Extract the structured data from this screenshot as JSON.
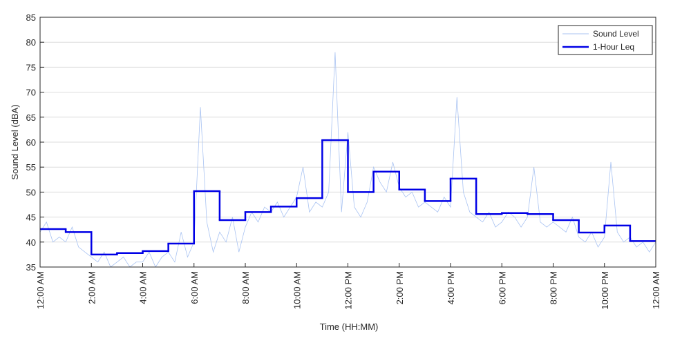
{
  "chart_data": {
    "type": "line",
    "xlabel": "Time (HH:MM)",
    "ylabel": "Sound Level (dBA)",
    "xlim": [
      0,
      24
    ],
    "xticks": [
      {
        "value": 0,
        "label": "12:00 AM"
      },
      {
        "value": 2,
        "label": "2:00 AM"
      },
      {
        "value": 4,
        "label": "4:00 AM"
      },
      {
        "value": 6,
        "label": "6:00 AM"
      },
      {
        "value": 8,
        "label": "8:00 AM"
      },
      {
        "value": 10,
        "label": "10:00 AM"
      },
      {
        "value": 12,
        "label": "12:00 PM"
      },
      {
        "value": 14,
        "label": "2:00 PM"
      },
      {
        "value": 16,
        "label": "4:00 PM"
      },
      {
        "value": 18,
        "label": "6:00 PM"
      },
      {
        "value": 20,
        "label": "8:00 PM"
      },
      {
        "value": 22,
        "label": "10:00 PM"
      },
      {
        "value": 24,
        "label": "12:00 AM"
      }
    ],
    "ylim": [
      35,
      85
    ],
    "yticks": [
      35,
      40,
      45,
      50,
      55,
      60,
      65,
      70,
      75,
      80,
      85
    ],
    "grid": true,
    "legend": "upper right",
    "series": [
      {
        "name": "Sound Level",
        "color": "#a9c3f2",
        "step": false,
        "x": [
          0,
          0.25,
          0.5,
          0.75,
          1,
          1.25,
          1.5,
          1.75,
          2,
          2.25,
          2.5,
          2.75,
          3,
          3.25,
          3.5,
          3.75,
          4,
          4.25,
          4.5,
          4.75,
          5,
          5.25,
          5.5,
          5.75,
          6,
          6.25,
          6.5,
          6.75,
          7,
          7.25,
          7.5,
          7.75,
          8,
          8.25,
          8.5,
          8.75,
          9,
          9.25,
          9.5,
          9.75,
          10,
          10.25,
          10.5,
          10.75,
          11,
          11.25,
          11.5,
          11.75,
          12,
          12.25,
          12.5,
          12.75,
          13,
          13.25,
          13.5,
          13.75,
          14,
          14.25,
          14.5,
          14.75,
          15,
          15.25,
          15.5,
          15.75,
          16,
          16.25,
          16.5,
          16.75,
          17,
          17.25,
          17.5,
          17.75,
          18,
          18.25,
          18.5,
          18.75,
          19,
          19.25,
          19.5,
          19.75,
          20,
          20.25,
          20.5,
          20.75,
          21,
          21.25,
          21.5,
          21.75,
          22,
          22.25,
          22.5,
          22.75,
          23,
          23.25,
          23.5,
          23.75,
          24
        ],
        "values": [
          42,
          44,
          40,
          41,
          40,
          43,
          39,
          38,
          37,
          36,
          38,
          35,
          36,
          37,
          35,
          36,
          36,
          38,
          35,
          37,
          38,
          36,
          42,
          37,
          40,
          67,
          44,
          38,
          42,
          40,
          45,
          38,
          43,
          46,
          44,
          47,
          46,
          48,
          45,
          47,
          49,
          55,
          46,
          48,
          47,
          50,
          78,
          46,
          62,
          47,
          45,
          48,
          55,
          52,
          50,
          56,
          51,
          49,
          50,
          47,
          48,
          47,
          46,
          49,
          47,
          69,
          50,
          46,
          45,
          44,
          46,
          43,
          44,
          46,
          45,
          43,
          45,
          55,
          44,
          43,
          44,
          43,
          42,
          45,
          41,
          40,
          42,
          39,
          41,
          56,
          42,
          40,
          41,
          39,
          40,
          38,
          40
        ]
      },
      {
        "name": "1-Hour Leq",
        "color": "#0000e6",
        "step": true,
        "x": [
          0,
          1,
          2,
          3,
          4,
          5,
          6,
          7,
          8,
          9,
          10,
          11,
          12,
          13,
          14,
          15,
          16,
          17,
          18,
          19,
          20,
          21,
          22,
          23
        ],
        "values": [
          42.6,
          42.0,
          37.5,
          37.8,
          38.2,
          39.7,
          50.2,
          44.4,
          46.0,
          47.1,
          48.8,
          60.4,
          50.0,
          54.1,
          50.5,
          48.2,
          52.7,
          45.6,
          45.8,
          45.6,
          44.4,
          41.9,
          43.3,
          40.2
        ]
      }
    ]
  }
}
